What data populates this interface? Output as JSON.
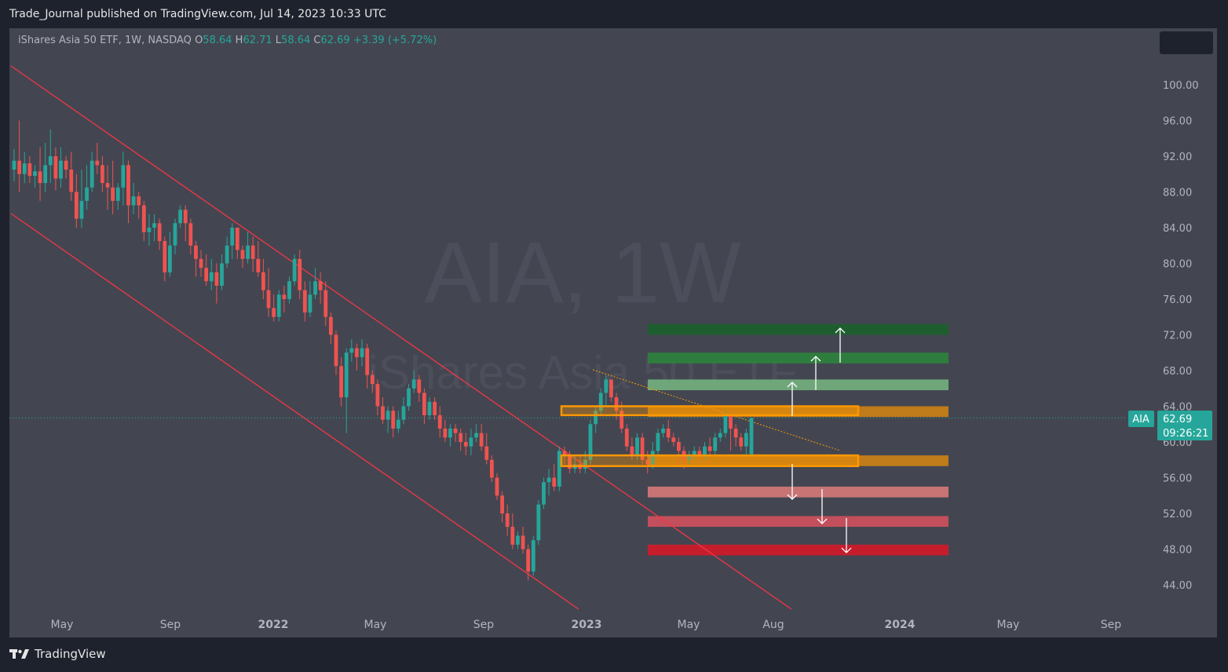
{
  "header": {
    "published": "Trade_Journal published on TradingView.com, Jul 14, 2023 10:33 UTC"
  },
  "legend": {
    "name": "iShares Asia 50 ETF, 1W, NASDAQ",
    "o_label": "O",
    "o": "58.64",
    "h_label": "H",
    "h": "62.71",
    "l_label": "L",
    "l": "58.64",
    "c_label": "C",
    "c": "62.69",
    "change": "+3.39 (+5.72%)"
  },
  "watermark": {
    "symbol": "AIA, 1W",
    "name": "iShares Asia 50 ETF"
  },
  "price_tag": {
    "symbol": "AIA",
    "price": "62.69",
    "countdown": "09:26:21"
  },
  "footer": {
    "brand": "TradingView"
  },
  "colors": {
    "up": "#26a69a",
    "down": "#ef5350",
    "channel": "#f23645",
    "zone": "#ff9800"
  },
  "chart_data": {
    "type": "candlestick",
    "y_ticks": [
      "100.00",
      "96.00",
      "92.00",
      "88.00",
      "84.00",
      "80.00",
      "76.00",
      "72.00",
      "68.00",
      "64.00",
      "60.00",
      "56.00",
      "52.00",
      "48.00",
      "44.00"
    ],
    "x_ticks": [
      "May",
      "Sep",
      "2022",
      "May",
      "Sep",
      "2023",
      "May",
      "Aug",
      "2024",
      "May",
      "Sep"
    ],
    "last_price": 62.69,
    "ylim": [
      42,
      103
    ],
    "target_levels": [
      {
        "from": 72.0,
        "to": 73.2,
        "color": "#1e5e2e"
      },
      {
        "from": 68.8,
        "to": 70.0,
        "color": "#2f7d3e"
      },
      {
        "from": 65.8,
        "to": 67.0,
        "color": "#6fa77a"
      },
      {
        "from": 62.8,
        "to": 64.0,
        "color": "#c07b1a"
      },
      {
        "from": 57.3,
        "to": 58.5,
        "color": "#c07b1a"
      },
      {
        "from": 53.8,
        "to": 55.0,
        "color": "#c87474"
      },
      {
        "from": 50.5,
        "to": 51.7,
        "color": "#c24f5b"
      },
      {
        "from": 47.3,
        "to": 48.5,
        "color": "#c61d2d"
      }
    ],
    "candles": [
      [
        90.5,
        91.5,
        89.2,
        92.8
      ],
      [
        91.5,
        90.0,
        88.0,
        96.0
      ],
      [
        90.0,
        91.2,
        89.0,
        92.5
      ],
      [
        91.2,
        89.8,
        89.0,
        92.0
      ],
      [
        89.8,
        90.3,
        88.5,
        91.0
      ],
      [
        90.3,
        89.0,
        87.0,
        93.0
      ],
      [
        89.0,
        91.0,
        88.0,
        93.5
      ],
      [
        91.0,
        92.0,
        89.0,
        95.0
      ],
      [
        92.0,
        89.5,
        88.2,
        93.0
      ],
      [
        89.5,
        91.5,
        88.5,
        93.0
      ],
      [
        91.5,
        90.5,
        89.5,
        92.0
      ],
      [
        90.5,
        88.0,
        87.0,
        92.5
      ],
      [
        88.0,
        85.0,
        84.0,
        90.0
      ],
      [
        85.0,
        87.0,
        84.0,
        90.5
      ],
      [
        87.0,
        88.5,
        86.0,
        91.0
      ],
      [
        88.5,
        91.5,
        88.0,
        92.5
      ],
      [
        91.5,
        91.0,
        90.0,
        93.5
      ],
      [
        91.0,
        89.0,
        88.0,
        92.0
      ],
      [
        89.0,
        88.5,
        86.0,
        91.0
      ],
      [
        88.5,
        87.0,
        85.5,
        91.5
      ],
      [
        87.0,
        88.5,
        86.0,
        89.0
      ],
      [
        88.5,
        91.0,
        86.5,
        92.5
      ],
      [
        91.0,
        86.5,
        84.5,
        91.5
      ],
      [
        86.5,
        87.5,
        85.5,
        89.0
      ],
      [
        87.5,
        86.5,
        85.0,
        88.0
      ],
      [
        86.5,
        83.5,
        82.5,
        87.0
      ],
      [
        83.5,
        84.0,
        82.0,
        85.5
      ],
      [
        84.0,
        84.5,
        82.5,
        85.5
      ],
      [
        84.5,
        82.5,
        81.5,
        85.0
      ],
      [
        82.5,
        79.0,
        78.0,
        83.0
      ],
      [
        79.0,
        82.0,
        78.5,
        83.5
      ],
      [
        82.0,
        84.5,
        81.0,
        85.0
      ],
      [
        84.5,
        86.0,
        84.0,
        86.5
      ],
      [
        86.0,
        84.5,
        82.5,
        86.5
      ],
      [
        84.5,
        82.0,
        81.0,
        85.0
      ],
      [
        82.0,
        80.5,
        78.5,
        82.5
      ],
      [
        80.5,
        79.5,
        78.5,
        81.5
      ],
      [
        79.5,
        78.0,
        77.5,
        81.0
      ],
      [
        78.0,
        79.0,
        77.0,
        80.5
      ],
      [
        79.0,
        77.5,
        75.5,
        80.0
      ],
      [
        77.5,
        80.0,
        77.0,
        81.0
      ],
      [
        80.0,
        82.0,
        79.5,
        83.0
      ],
      [
        82.0,
        84.0,
        80.5,
        84.5
      ],
      [
        84.0,
        81.5,
        80.5,
        84.0
      ],
      [
        81.5,
        80.5,
        79.5,
        82.0
      ],
      [
        80.5,
        82.0,
        80.0,
        83.5
      ],
      [
        82.0,
        80.5,
        79.0,
        83.0
      ],
      [
        80.5,
        79.0,
        78.5,
        82.5
      ],
      [
        79.0,
        77.0,
        76.0,
        80.5
      ],
      [
        77.0,
        75.0,
        74.0,
        79.5
      ],
      [
        75.0,
        74.0,
        73.5,
        76.5
      ],
      [
        74.0,
        76.5,
        73.5,
        77.0
      ],
      [
        76.5,
        76.0,
        74.5,
        77.5
      ],
      [
        76.0,
        78.0,
        75.5,
        78.5
      ],
      [
        78.0,
        80.5,
        77.5,
        81.0
      ],
      [
        80.5,
        77.0,
        76.0,
        81.5
      ],
      [
        77.0,
        74.5,
        73.5,
        78.0
      ],
      [
        74.5,
        76.5,
        74.0,
        78.0
      ],
      [
        76.5,
        78.0,
        76.0,
        79.5
      ],
      [
        78.0,
        77.0,
        75.5,
        79.0
      ],
      [
        77.0,
        74.0,
        73.0,
        78.0
      ],
      [
        74.0,
        72.0,
        71.0,
        74.5
      ],
      [
        72.0,
        68.5,
        67.5,
        72.5
      ],
      [
        68.5,
        65.0,
        64.0,
        69.5
      ],
      [
        65.0,
        70.0,
        61.0,
        70.5
      ],
      [
        70.0,
        70.5,
        69.0,
        71.5
      ],
      [
        70.5,
        69.5,
        68.0,
        71.0
      ],
      [
        69.5,
        70.5,
        68.5,
        71.5
      ],
      [
        70.5,
        67.5,
        66.0,
        71.0
      ],
      [
        67.5,
        66.5,
        65.5,
        68.0
      ],
      [
        66.5,
        64.0,
        63.0,
        67.0
      ],
      [
        64.0,
        62.5,
        62.0,
        65.0
      ],
      [
        62.5,
        63.5,
        61.0,
        64.0
      ],
      [
        63.5,
        61.5,
        60.5,
        64.0
      ],
      [
        61.5,
        62.5,
        61.0,
        63.5
      ],
      [
        62.5,
        64.0,
        62.0,
        65.0
      ],
      [
        64.0,
        66.0,
        63.5,
        66.5
      ],
      [
        66.0,
        67.0,
        65.5,
        68.0
      ],
      [
        67.0,
        65.5,
        64.5,
        67.5
      ],
      [
        65.5,
        63.0,
        62.0,
        66.0
      ],
      [
        63.0,
        64.5,
        62.5,
        65.0
      ],
      [
        64.5,
        63.0,
        62.5,
        65.0
      ],
      [
        63.0,
        61.5,
        60.5,
        64.0
      ],
      [
        61.5,
        60.5,
        60.0,
        62.5
      ],
      [
        60.5,
        61.5,
        59.5,
        62.0
      ],
      [
        61.5,
        61.0,
        60.0,
        62.0
      ],
      [
        61.0,
        60.0,
        59.0,
        61.5
      ],
      [
        60.0,
        59.5,
        58.5,
        61.0
      ],
      [
        59.5,
        60.5,
        58.5,
        61.5
      ],
      [
        60.5,
        61.0,
        60.0,
        62.0
      ],
      [
        61.0,
        59.5,
        59.0,
        62.0
      ],
      [
        59.5,
        58.0,
        57.5,
        61.0
      ],
      [
        58.0,
        56.0,
        55.5,
        58.5
      ],
      [
        56.0,
        54.0,
        53.5,
        56.5
      ],
      [
        54.0,
        52.0,
        51.0,
        54.5
      ],
      [
        52.0,
        50.5,
        49.5,
        53.0
      ],
      [
        50.5,
        48.5,
        48.0,
        52.0
      ],
      [
        48.5,
        49.5,
        48.0,
        50.0
      ],
      [
        49.5,
        48.0,
        47.5,
        50.5
      ],
      [
        48.0,
        45.5,
        44.5,
        48.5
      ],
      [
        45.5,
        49.0,
        45.0,
        49.5
      ],
      [
        49.0,
        53.0,
        48.5,
        53.5
      ],
      [
        53.0,
        55.5,
        52.5,
        56.0
      ],
      [
        55.5,
        56.0,
        54.0,
        57.0
      ],
      [
        56.0,
        55.0,
        54.5,
        57.5
      ],
      [
        55.0,
        59.0,
        54.5,
        59.5
      ],
      [
        59.0,
        58.5,
        57.5,
        59.5
      ],
      [
        58.5,
        57.0,
        56.5,
        59.0
      ],
      [
        57.0,
        57.5,
        56.5,
        58.5
      ],
      [
        57.5,
        57.0,
        56.5,
        58.5
      ],
      [
        57.0,
        58.0,
        56.5,
        59.0
      ],
      [
        58.0,
        62.0,
        57.5,
        62.5
      ],
      [
        62.0,
        63.5,
        61.0,
        64.0
      ],
      [
        63.5,
        65.5,
        63.0,
        66.0
      ],
      [
        65.5,
        67.0,
        64.0,
        67.5
      ],
      [
        67.0,
        65.0,
        64.5,
        67.0
      ],
      [
        65.0,
        63.5,
        62.5,
        65.5
      ],
      [
        63.5,
        61.5,
        61.0,
        64.5
      ],
      [
        61.5,
        59.5,
        59.0,
        62.0
      ],
      [
        59.5,
        58.5,
        58.0,
        60.5
      ],
      [
        58.5,
        60.5,
        58.0,
        61.0
      ],
      [
        60.5,
        58.0,
        57.5,
        61.0
      ],
      [
        58.0,
        57.5,
        56.5,
        59.0
      ],
      [
        57.5,
        59.0,
        57.0,
        60.0
      ],
      [
        59.0,
        61.0,
        58.5,
        61.5
      ],
      [
        61.0,
        61.5,
        60.5,
        62.0
      ],
      [
        61.5,
        60.5,
        60.0,
        62.5
      ],
      [
        60.5,
        60.0,
        59.5,
        61.0
      ],
      [
        60.0,
        59.0,
        57.5,
        60.5
      ],
      [
        59.0,
        58.0,
        57.0,
        59.5
      ],
      [
        58.0,
        58.5,
        57.5,
        59.0
      ],
      [
        58.5,
        59.0,
        58.0,
        59.5
      ],
      [
        59.0,
        58.5,
        58.0,
        59.5
      ],
      [
        58.5,
        59.5,
        58.0,
        60.0
      ],
      [
        59.5,
        59.0,
        58.5,
        60.5
      ],
      [
        59.0,
        60.5,
        58.5,
        61.0
      ],
      [
        60.5,
        61.0,
        60.0,
        61.5
      ],
      [
        61.0,
        63.0,
        60.5,
        63.5
      ],
      [
        63.0,
        61.5,
        59.0,
        63.0
      ],
      [
        61.5,
        60.5,
        59.5,
        62.0
      ],
      [
        60.5,
        59.5,
        59.0,
        61.0
      ],
      [
        59.5,
        61.0,
        58.5,
        61.5
      ],
      [
        58.64,
        62.69,
        58.64,
        62.71
      ]
    ]
  }
}
